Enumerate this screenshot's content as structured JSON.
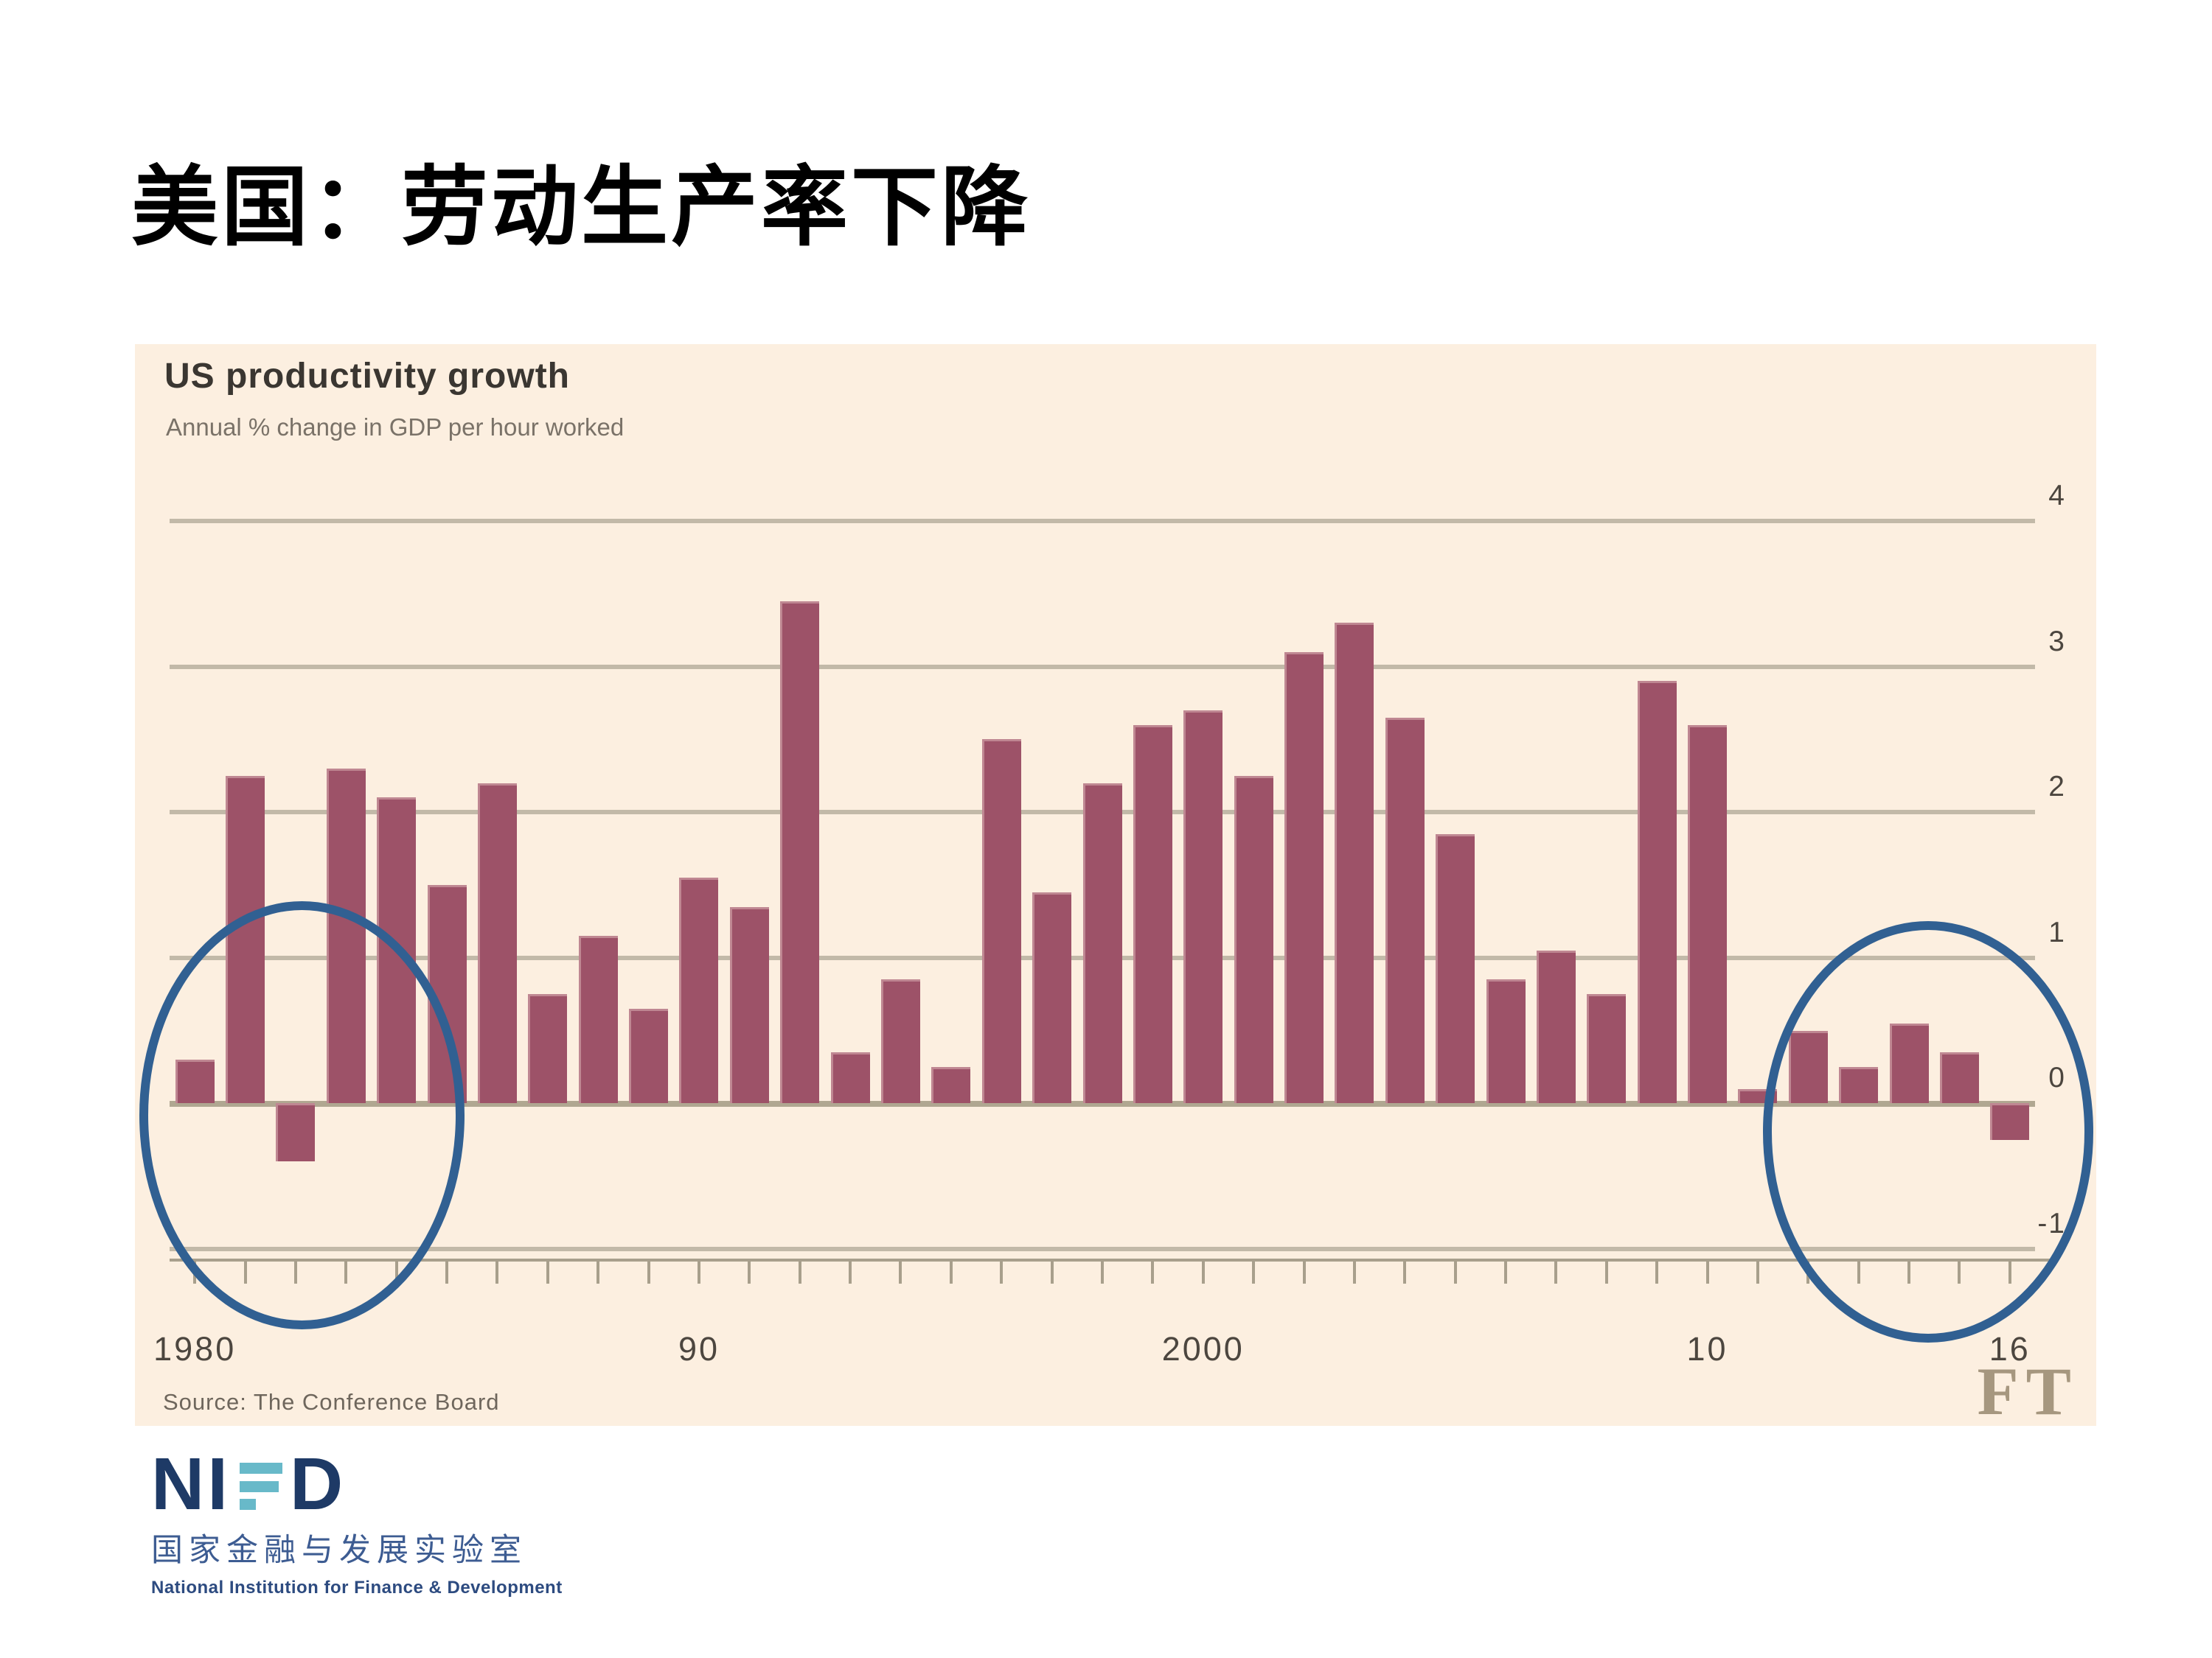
{
  "slide": {
    "title": "美国：劳动生产率下降"
  },
  "chart": {
    "title": "US productivity growth",
    "subtitle": "Annual % change in GDP per hour worked",
    "source": "Source: The Conference Board",
    "brand": "FT"
  },
  "colors": {
    "panel_bg": "#fcefe0",
    "bar": "#9d5268",
    "gridline": "#c2b9a8",
    "zero_line": "#b0a791",
    "axis": "#a89f8c",
    "highlight_ellipse": "#316092",
    "ft_logo": "#a6977f",
    "nifd_navy": "#1e3a66",
    "nifd_teal": "#68b9c9"
  },
  "chart_data": {
    "type": "bar",
    "title": "US productivity growth",
    "subtitle": "Annual % change in GDP per hour worked",
    "xlabel": "",
    "ylabel": "Annual % change",
    "x": [
      1980,
      1981,
      1982,
      1983,
      1984,
      1985,
      1986,
      1987,
      1988,
      1989,
      1990,
      1991,
      1992,
      1993,
      1994,
      1995,
      1996,
      1997,
      1998,
      1999,
      2000,
      2001,
      2002,
      2003,
      2004,
      2005,
      2006,
      2007,
      2008,
      2009,
      2010,
      2011,
      2012,
      2013,
      2014,
      2015,
      2016
    ],
    "values": [
      0.3,
      2.25,
      -0.4,
      2.3,
      2.1,
      1.5,
      2.2,
      0.75,
      1.15,
      0.65,
      1.55,
      1.35,
      3.45,
      0.35,
      0.85,
      0.25,
      2.5,
      1.45,
      2.2,
      2.6,
      2.7,
      2.25,
      3.1,
      3.3,
      2.65,
      1.85,
      0.85,
      1.05,
      0.75,
      2.9,
      2.6,
      0.1,
      0.5,
      0.25,
      0.55,
      0.35,
      -0.25
    ],
    "ylim": [
      -1,
      4
    ],
    "yticks": [
      4,
      3,
      2,
      1,
      0,
      -1
    ],
    "xticks": [
      {
        "x": 1980,
        "label": "1980"
      },
      {
        "x": 1990,
        "label": "90"
      },
      {
        "x": 2000,
        "label": "2000"
      },
      {
        "x": 2010,
        "label": "10"
      },
      {
        "x": 2016,
        "label": "16"
      }
    ],
    "grid": true,
    "legend": false,
    "annotations": [
      {
        "label": "highlight-early-1980s",
        "shape": "ellipse",
        "year_min": 1978.9,
        "year_max": 1985.0,
        "val_min": -1.43,
        "val_max": 1.39
      },
      {
        "label": "highlight-2012-2016",
        "shape": "ellipse",
        "year_min": 2011.1,
        "year_max": 2017.3,
        "val_min": -1.52,
        "val_max": 1.25
      }
    ]
  },
  "logo": {
    "letters_left": "NI",
    "letters_right": "D",
    "chinese": "国家金融与发展实验室",
    "english": "National Institution for Finance & Development"
  }
}
